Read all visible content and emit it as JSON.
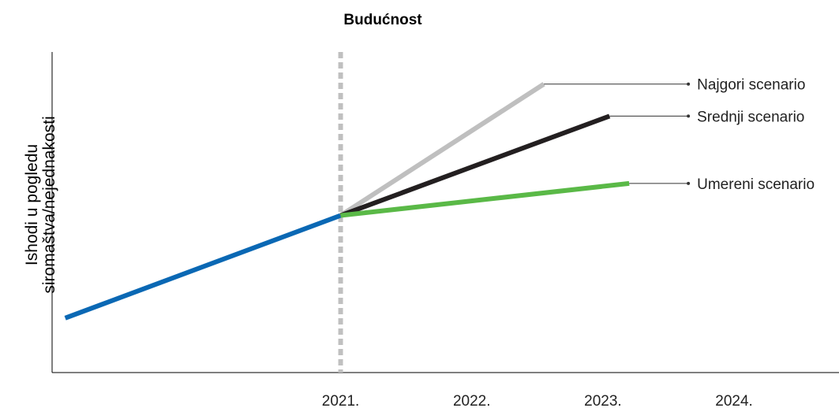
{
  "chart_data": {
    "type": "line",
    "title": "Budućnost",
    "ylabel_lines": [
      "Ishodi u pogledu",
      "siromaštva/nejednakosti"
    ],
    "xlabel": "",
    "x_ticks": [
      "2021.",
      "2022.",
      "2023.",
      "2024."
    ],
    "xlim": [
      2018.8,
      2024.8
    ],
    "ylim": [
      0,
      10
    ],
    "divider_x": 2021,
    "grid": false,
    "legend_placement": "right",
    "historical": {
      "color": "#0a68b4",
      "points": [
        [
          2018.9,
          1.7
        ],
        [
          2021.0,
          4.9
        ]
      ]
    },
    "series": [
      {
        "name": "Najgori scenario",
        "color": "#bfbfbf",
        "points": [
          [
            2021.0,
            4.9
          ],
          [
            2022.55,
            9.0
          ]
        ]
      },
      {
        "name": "Srednji scenario",
        "color": "#231f20",
        "points": [
          [
            2021.0,
            4.9
          ],
          [
            2023.05,
            8.0
          ]
        ]
      },
      {
        "name": "Umereni scenario",
        "color": "#5ab947",
        "points": [
          [
            2021.0,
            4.9
          ],
          [
            2023.2,
            5.9
          ]
        ]
      }
    ]
  }
}
